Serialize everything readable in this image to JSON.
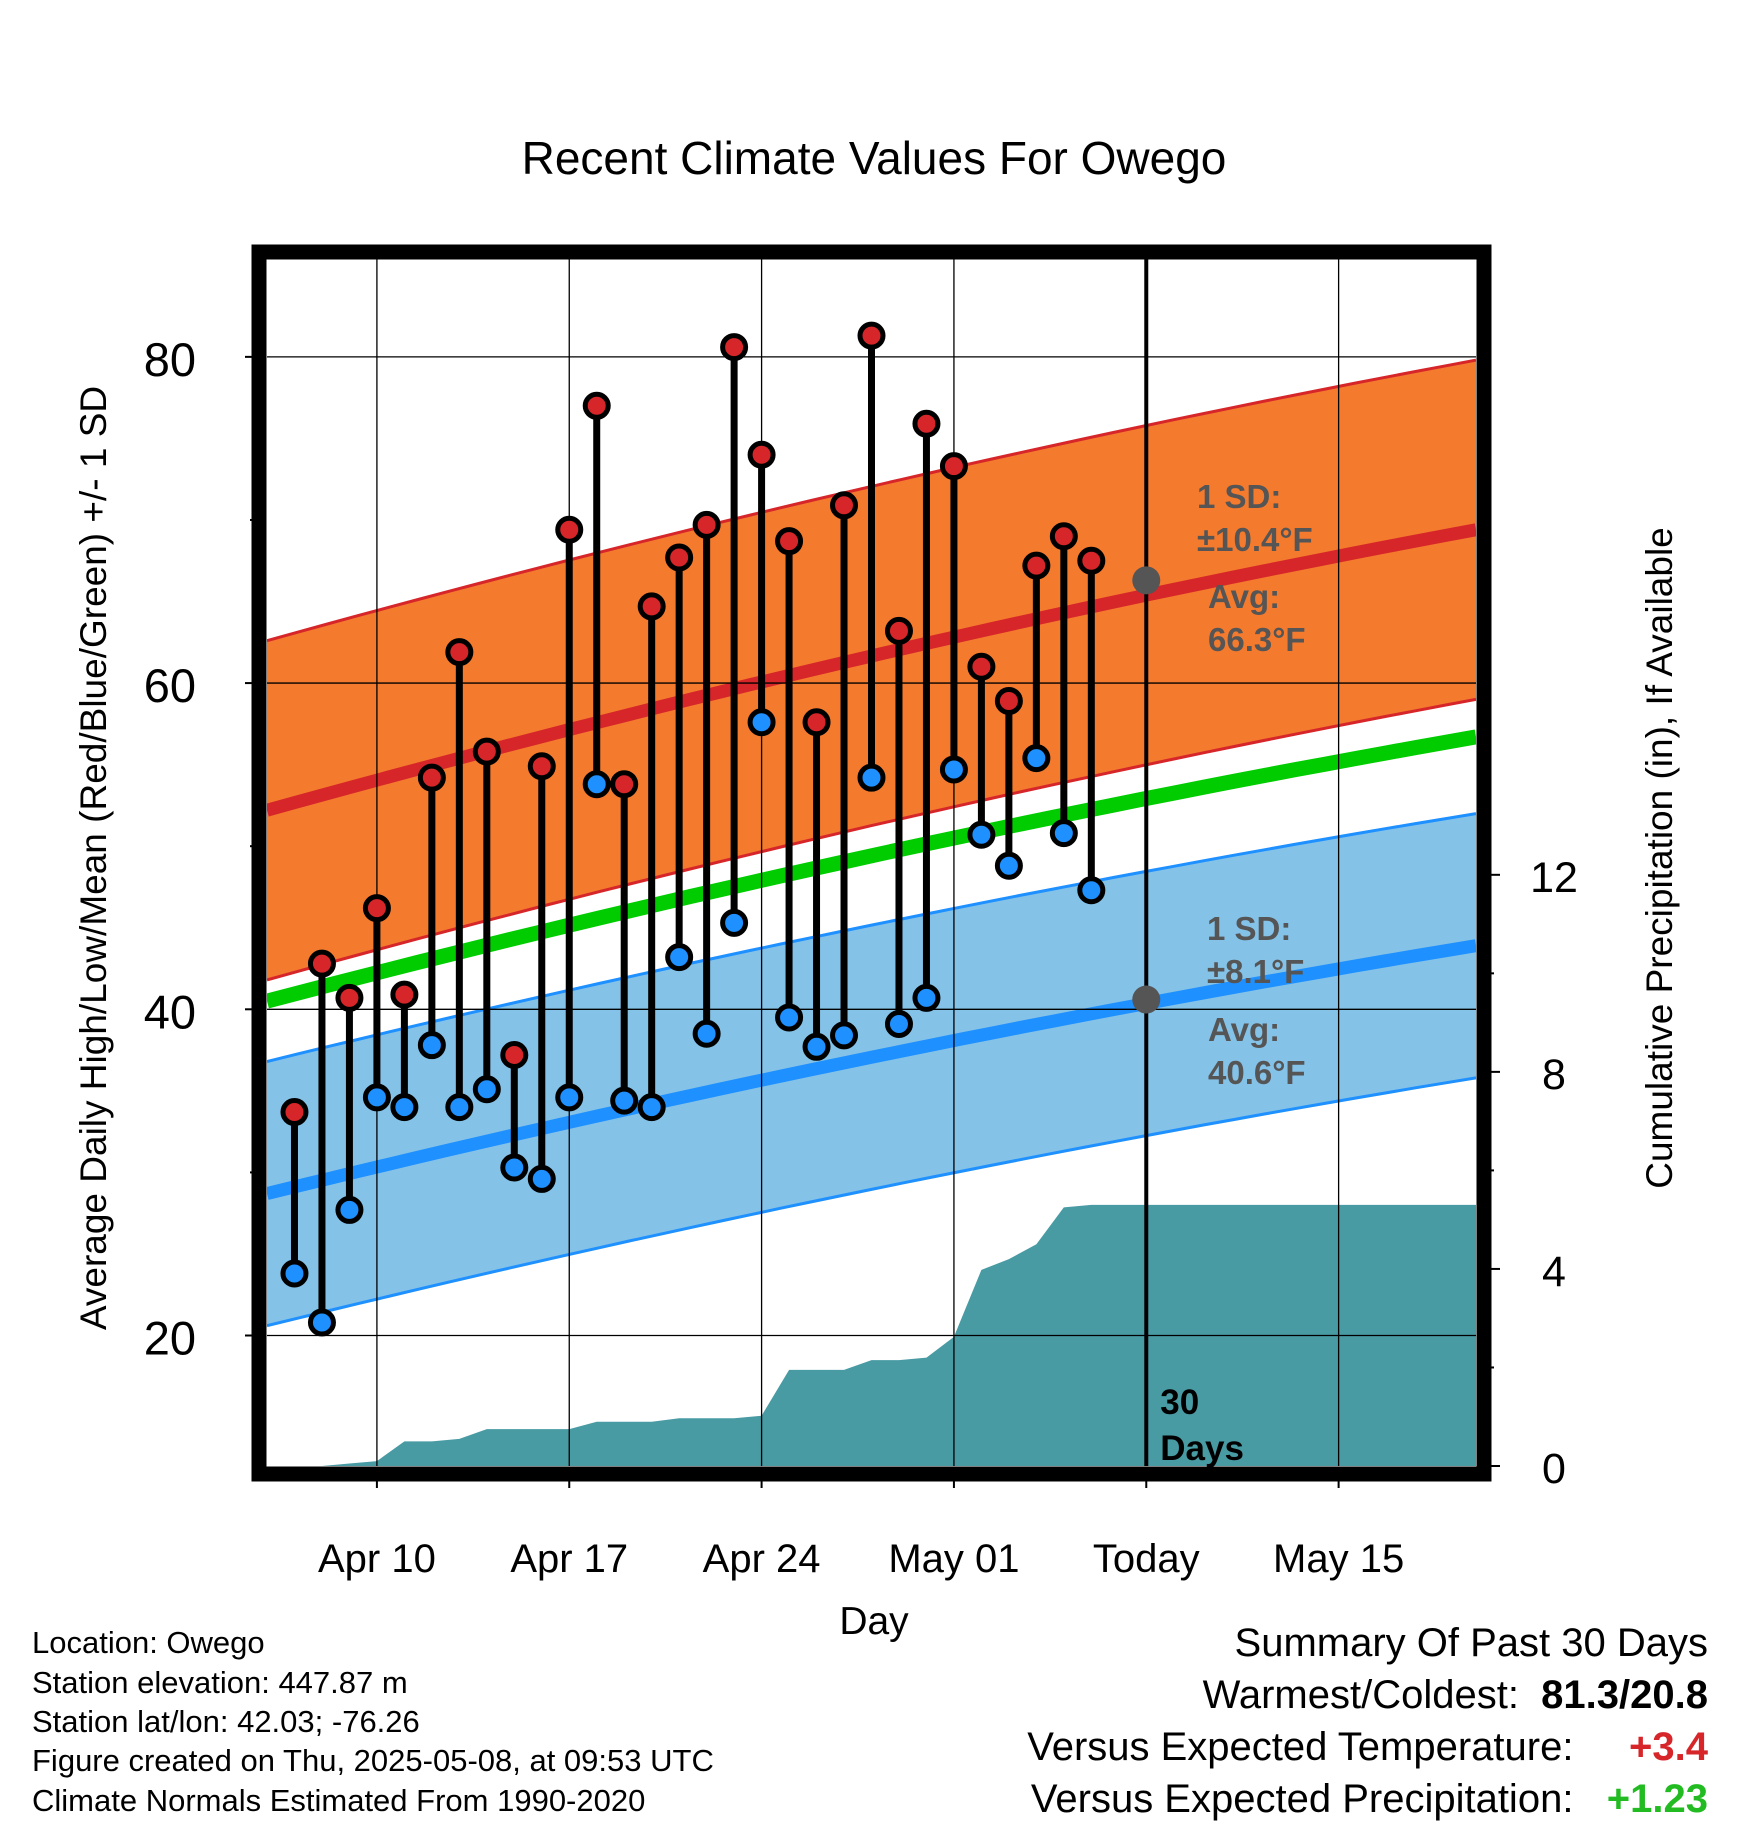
{
  "chart_data": {
    "type": "line",
    "title": "Recent Climate Values For Owego",
    "xlabel": "Day",
    "ylabel": "Average Daily High/Low/Mean (Red/Blue/Green) +/- 1 SD",
    "y2label": "Cumulative Precipitation (in), If Available",
    "ylim": [
      12,
      86
    ],
    "y2lim": [
      0,
      24.5
    ],
    "yticks": [
      "20",
      "40",
      "60",
      "80"
    ],
    "y2ticks": [
      "0",
      "4",
      "8",
      "12"
    ],
    "x_range_days": [
      "2025-04-06",
      "2025-05-20"
    ],
    "xticks": [
      {
        "date": "2025-04-10",
        "label": "Apr 10"
      },
      {
        "date": "2025-04-17",
        "label": "Apr 17"
      },
      {
        "date": "2025-04-24",
        "label": "Apr 24"
      },
      {
        "date": "2025-05-01",
        "label": "May 01"
      },
      {
        "date": "2025-05-08",
        "label": "Today"
      },
      {
        "date": "2025-05-15",
        "label": "May 15"
      }
    ],
    "today": "2025-05-08",
    "grid": true,
    "normals": {
      "high_mean": {
        "start": 52.2,
        "end": 69.4
      },
      "high_sd": 10.4,
      "low_mean": {
        "start": 28.7,
        "end": 43.9
      },
      "low_sd": 8.1,
      "mean": {
        "start": 40.5,
        "end": 56.7
      }
    },
    "daily": [
      {
        "date": "2025-04-07",
        "high": 33.7,
        "low": 23.8
      },
      {
        "date": "2025-04-08",
        "high": 42.8,
        "low": 20.8
      },
      {
        "date": "2025-04-09",
        "high": 40.7,
        "low": 27.7
      },
      {
        "date": "2025-04-10",
        "high": 46.2,
        "low": 34.6
      },
      {
        "date": "2025-04-11",
        "high": 40.9,
        "low": 34.0
      },
      {
        "date": "2025-04-12",
        "high": 54.2,
        "low": 37.8
      },
      {
        "date": "2025-04-13",
        "high": 61.9,
        "low": 34.0
      },
      {
        "date": "2025-04-14",
        "high": 55.8,
        "low": 35.1
      },
      {
        "date": "2025-04-15",
        "high": 37.2,
        "low": 30.3
      },
      {
        "date": "2025-04-16",
        "high": 54.9,
        "low": 29.6
      },
      {
        "date": "2025-04-17",
        "high": 69.4,
        "low": 34.6
      },
      {
        "date": "2025-04-18",
        "high": 77.0,
        "low": 53.8
      },
      {
        "date": "2025-04-19",
        "high": 53.8,
        "low": 34.4
      },
      {
        "date": "2025-04-20",
        "high": 64.7,
        "low": 34.0
      },
      {
        "date": "2025-04-21",
        "high": 67.7,
        "low": 43.2
      },
      {
        "date": "2025-04-22",
        "high": 69.7,
        "low": 38.5
      },
      {
        "date": "2025-04-23",
        "high": 80.6,
        "low": 45.3
      },
      {
        "date": "2025-04-24",
        "high": 74.0,
        "low": 57.6
      },
      {
        "date": "2025-04-25",
        "high": 68.7,
        "low": 39.5
      },
      {
        "date": "2025-04-26",
        "high": 57.6,
        "low": 37.7
      },
      {
        "date": "2025-04-27",
        "high": 70.9,
        "low": 38.4
      },
      {
        "date": "2025-04-28",
        "high": 81.3,
        "low": 54.2
      },
      {
        "date": "2025-04-29",
        "high": 63.2,
        "low": 39.1
      },
      {
        "date": "2025-04-30",
        "high": 75.9,
        "low": 40.7
      },
      {
        "date": "2025-05-01",
        "high": 73.3,
        "low": 54.7
      },
      {
        "date": "2025-05-02",
        "high": 61.0,
        "low": 50.7
      },
      {
        "date": "2025-05-03",
        "high": 58.9,
        "low": 48.8
      },
      {
        "date": "2025-05-04",
        "high": 67.2,
        "low": 55.4
      },
      {
        "date": "2025-05-05",
        "high": 69.0,
        "low": 50.8
      },
      {
        "date": "2025-05-06",
        "high": 67.5,
        "low": 47.3
      }
    ],
    "precip_cumulative": [
      {
        "date": "2025-04-07",
        "value": 0.0
      },
      {
        "date": "2025-04-08",
        "value": 0.0
      },
      {
        "date": "2025-04-09",
        "value": 0.05
      },
      {
        "date": "2025-04-10",
        "value": 0.1
      },
      {
        "date": "2025-04-11",
        "value": 0.5
      },
      {
        "date": "2025-04-12",
        "value": 0.5
      },
      {
        "date": "2025-04-13",
        "value": 0.55
      },
      {
        "date": "2025-04-14",
        "value": 0.75
      },
      {
        "date": "2025-04-15",
        "value": 0.75
      },
      {
        "date": "2025-04-16",
        "value": 0.75
      },
      {
        "date": "2025-04-17",
        "value": 0.75
      },
      {
        "date": "2025-04-18",
        "value": 0.9
      },
      {
        "date": "2025-04-19",
        "value": 0.9
      },
      {
        "date": "2025-04-20",
        "value": 0.9
      },
      {
        "date": "2025-04-21",
        "value": 0.97
      },
      {
        "date": "2025-04-22",
        "value": 0.97
      },
      {
        "date": "2025-04-23",
        "value": 0.97
      },
      {
        "date": "2025-04-24",
        "value": 1.02
      },
      {
        "date": "2025-04-25",
        "value": 1.95
      },
      {
        "date": "2025-04-26",
        "value": 1.95
      },
      {
        "date": "2025-04-27",
        "value": 1.95
      },
      {
        "date": "2025-04-28",
        "value": 2.15
      },
      {
        "date": "2025-04-29",
        "value": 2.15
      },
      {
        "date": "2025-04-30",
        "value": 2.2
      },
      {
        "date": "2025-05-01",
        "value": 2.62
      },
      {
        "date": "2025-05-02",
        "value": 3.98
      },
      {
        "date": "2025-05-03",
        "value": 4.2
      },
      {
        "date": "2025-05-04",
        "value": 4.5
      },
      {
        "date": "2025-05-05",
        "value": 5.25
      },
      {
        "date": "2025-05-06",
        "value": 5.3
      },
      {
        "date": "2025-05-20",
        "value": 5.3
      }
    ],
    "annotations": {
      "high_sd_label": "1 SD:",
      "high_sd_value": "±10.4°F",
      "high_avg_label": "Avg:",
      "high_avg_value": "66.3°F",
      "low_sd_label": "1 SD:",
      "low_sd_value": "±8.1°F",
      "low_avg_label": "Avg:",
      "low_avg_value": "40.6°F",
      "window_number": "30",
      "window_unit": "Days"
    },
    "colors": {
      "high_band": "#f47a2e",
      "high_line": "#d62629",
      "low_band": "#84c2e8",
      "low_line": "#1e90ff",
      "mean_line": "#00cc00",
      "precip": "#489aa3",
      "high_dot": "#d62629",
      "low_dot": "#1e90ff",
      "annotation_text": "#555555",
      "avg_marker": "#555555"
    }
  },
  "footer": {
    "location": "Location: Owego",
    "elevation": "Station elevation: 447.87 m",
    "latlon": "Station lat/lon: 42.03; -76.26",
    "created": "Figure created on Thu, 2025-05-08, at 09:53 UTC",
    "normals": "Climate Normals Estimated From 1990-2020"
  },
  "summary": {
    "title": "Summary Of Past 30 Days",
    "warmest_label": "Warmest/Coldest:",
    "warmest_value": "81.3/20.8",
    "temp_label": "Versus Expected Temperature:",
    "temp_value": "+3.4",
    "temp_color": "#d62629",
    "precip_label": "Versus Expected Precipitation:",
    "precip_value": "+1.23",
    "precip_color": "#22bb22"
  }
}
